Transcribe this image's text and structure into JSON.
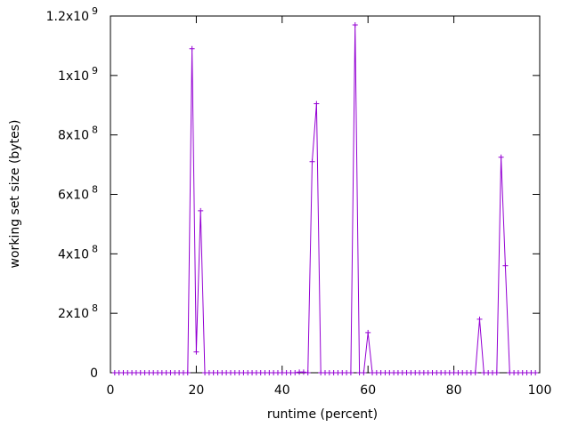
{
  "chart_data": {
    "type": "line",
    "title": "",
    "xlabel": "runtime (percent)",
    "ylabel": "working set size (bytes)",
    "xlim": [
      0,
      100
    ],
    "ylim": [
      0,
      1200000000
    ],
    "x_ticks": [
      {
        "value": 0,
        "label": "0"
      },
      {
        "value": 20,
        "label": "20"
      },
      {
        "value": 40,
        "label": "40"
      },
      {
        "value": 60,
        "label": "60"
      },
      {
        "value": 80,
        "label": "80"
      },
      {
        "value": 100,
        "label": "100"
      }
    ],
    "y_ticks": [
      {
        "value": 0,
        "base": "0",
        "exp": ""
      },
      {
        "value": 200000000,
        "base": "2x10",
        "exp": "8"
      },
      {
        "value": 400000000,
        "base": "4x10",
        "exp": "8"
      },
      {
        "value": 600000000,
        "base": "6x10",
        "exp": "8"
      },
      {
        "value": 800000000,
        "base": "8x10",
        "exp": "8"
      },
      {
        "value": 1000000000,
        "base": "1x10",
        "exp": "9"
      },
      {
        "value": 1200000000,
        "base": "1.2x10",
        "exp": "9"
      }
    ],
    "grid": false,
    "series_color": "#9400d3",
    "series": [
      {
        "x": [
          1,
          2,
          3,
          4,
          5,
          6,
          7,
          8,
          9,
          10,
          11,
          12,
          13,
          14,
          15,
          16,
          17,
          18,
          19,
          20,
          21,
          22,
          23,
          24,
          25,
          26,
          27,
          28,
          29,
          30,
          31,
          32,
          33,
          34,
          35,
          36,
          37,
          38,
          39,
          40,
          41,
          42,
          43,
          44,
          45,
          46,
          47,
          48,
          49,
          50,
          51,
          52,
          53,
          54,
          55,
          56,
          57,
          58,
          59,
          60,
          61,
          62,
          63,
          64,
          65,
          66,
          67,
          68,
          69,
          70,
          71,
          72,
          73,
          74,
          75,
          76,
          77,
          78,
          79,
          80,
          81,
          82,
          83,
          84,
          85,
          86,
          87,
          88,
          89,
          90,
          91,
          92,
          93,
          94,
          95,
          96,
          97,
          98,
          99
        ],
        "y": [
          0,
          0,
          0,
          0,
          0,
          0,
          0,
          0,
          0,
          0,
          0,
          0,
          0,
          0,
          0,
          0,
          0,
          0,
          1090000000,
          70000000,
          545000000,
          0,
          0,
          0,
          0,
          0,
          0,
          0,
          0,
          0,
          0,
          0,
          0,
          0,
          0,
          0,
          0,
          0,
          0,
          0,
          0,
          0,
          0,
          2000000,
          2000000,
          0,
          710000000,
          905000000,
          0,
          0,
          0,
          0,
          0,
          0,
          0,
          0,
          1170000000,
          0,
          0,
          135000000,
          0,
          0,
          0,
          0,
          0,
          0,
          0,
          0,
          0,
          0,
          0,
          0,
          0,
          0,
          0,
          0,
          0,
          0,
          0,
          0,
          0,
          0,
          0,
          0,
          0,
          180000000,
          0,
          0,
          0,
          0,
          725000000,
          360000000,
          0,
          0,
          0,
          0,
          0,
          0,
          0
        ]
      }
    ]
  }
}
